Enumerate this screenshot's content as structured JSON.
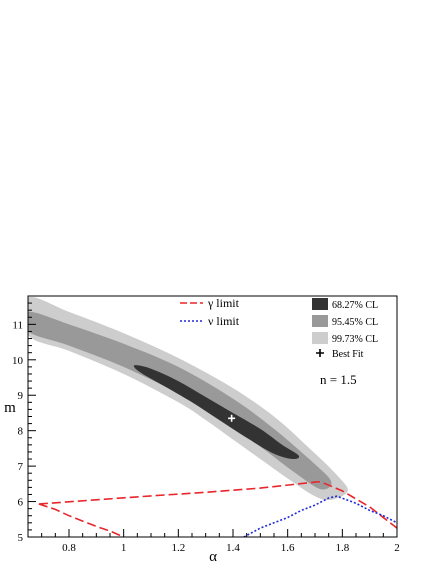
{
  "chart_data": {
    "type": "contour",
    "xlabel": "α",
    "ylabel": "m",
    "xlim": [
      0.65,
      2.0
    ],
    "ylim": [
      5.0,
      11.8
    ],
    "x_ticks": [
      0.8,
      1.0,
      1.2,
      1.4,
      1.6,
      1.8,
      2.0
    ],
    "x_tick_labels": [
      "0.8",
      "1",
      "1.2",
      "1.4",
      "1.6",
      "1.8",
      "2"
    ],
    "y_ticks": [
      5,
      6,
      7,
      8,
      9,
      10,
      11
    ],
    "y_tick_labels": [
      "5",
      "6",
      "7",
      "8",
      "9",
      "10",
      "11"
    ],
    "annotation": "n = 1.5",
    "best_fit": {
      "x": 1.395,
      "y": 8.35
    },
    "confidence_regions": [
      {
        "name": "99.73% CL",
        "color": "#cdcdcd",
        "boundary": [
          [
            0.65,
            11.75
          ],
          [
            0.8,
            11.35
          ],
          [
            1.0,
            10.75
          ],
          [
            1.2,
            10.05
          ],
          [
            1.4,
            9.2
          ],
          [
            1.55,
            8.4
          ],
          [
            1.68,
            7.5
          ],
          [
            1.78,
            6.75
          ],
          [
            1.82,
            6.3
          ],
          [
            1.76,
            6.05
          ],
          [
            1.7,
            6.15
          ],
          [
            1.6,
            6.65
          ],
          [
            1.5,
            7.2
          ],
          [
            1.4,
            7.75
          ],
          [
            1.3,
            8.3
          ],
          [
            1.2,
            8.8
          ],
          [
            1.0,
            9.6
          ],
          [
            0.8,
            10.25
          ],
          [
            0.65,
            10.7
          ]
        ]
      },
      {
        "name": "95.45% CL",
        "color": "#999999",
        "boundary": [
          [
            0.65,
            11.35
          ],
          [
            0.8,
            11.0
          ],
          [
            1.0,
            10.45
          ],
          [
            1.2,
            9.8
          ],
          [
            1.4,
            8.9
          ],
          [
            1.55,
            8.05
          ],
          [
            1.7,
            7.05
          ],
          [
            1.76,
            6.55
          ],
          [
            1.72,
            6.35
          ],
          [
            1.62,
            6.85
          ],
          [
            1.5,
            7.55
          ],
          [
            1.4,
            8.05
          ],
          [
            1.3,
            8.55
          ],
          [
            1.2,
            9.05
          ],
          [
            1.0,
            9.8
          ],
          [
            0.8,
            10.4
          ],
          [
            0.65,
            10.8
          ]
        ]
      },
      {
        "name": "68.27% CL",
        "color": "#333333",
        "boundary": [
          [
            1.045,
            9.85
          ],
          [
            1.1,
            9.75
          ],
          [
            1.2,
            9.4
          ],
          [
            1.3,
            8.95
          ],
          [
            1.4,
            8.5
          ],
          [
            1.5,
            8.05
          ],
          [
            1.58,
            7.6
          ],
          [
            1.64,
            7.3
          ],
          [
            1.62,
            7.2
          ],
          [
            1.55,
            7.35
          ],
          [
            1.45,
            7.8
          ],
          [
            1.35,
            8.3
          ],
          [
            1.25,
            8.8
          ],
          [
            1.15,
            9.25
          ],
          [
            1.07,
            9.6
          ],
          [
            1.04,
            9.78
          ]
        ]
      }
    ],
    "series": [
      {
        "name": "γ limit",
        "color": "#e8262b",
        "style": "dashed",
        "segments": [
          [
            [
              0.69,
              5.93
            ],
            [
              0.9,
              6.05
            ],
            [
              1.1,
              6.16
            ],
            [
              1.3,
              6.26
            ],
            [
              1.5,
              6.38
            ],
            [
              1.7,
              6.55
            ],
            [
              1.72,
              6.56
            ],
            [
              1.8,
              6.3
            ],
            [
              1.9,
              5.85
            ],
            [
              2.0,
              5.25
            ]
          ],
          [
            [
              0.69,
              5.93
            ],
            [
              0.75,
              5.78
            ],
            [
              0.8,
              5.6
            ],
            [
              0.85,
              5.45
            ],
            [
              0.9,
              5.3
            ],
            [
              0.95,
              5.17
            ],
            [
              1.0,
              5.0
            ]
          ]
        ]
      },
      {
        "name": "ν limit",
        "color": "#1f2bd6",
        "style": "dotted",
        "segments": [
          [
            [
              1.44,
              5.0
            ],
            [
              1.5,
              5.25
            ],
            [
              1.55,
              5.4
            ],
            [
              1.6,
              5.55
            ],
            [
              1.65,
              5.75
            ],
            [
              1.7,
              5.9
            ],
            [
              1.75,
              6.1
            ],
            [
              1.78,
              6.15
            ],
            [
              1.85,
              5.95
            ],
            [
              1.9,
              5.75
            ],
            [
              1.95,
              5.6
            ],
            [
              2.0,
              5.4
            ]
          ]
        ]
      }
    ],
    "legend_left": [
      "γ limit",
      "ν limit"
    ],
    "legend_right": [
      "68.27% CL",
      "95.45% CL",
      "99.73% CL",
      "Best Fit"
    ],
    "legend_right_colors": [
      "#333333",
      "#999999",
      "#cdcdcd"
    ]
  }
}
